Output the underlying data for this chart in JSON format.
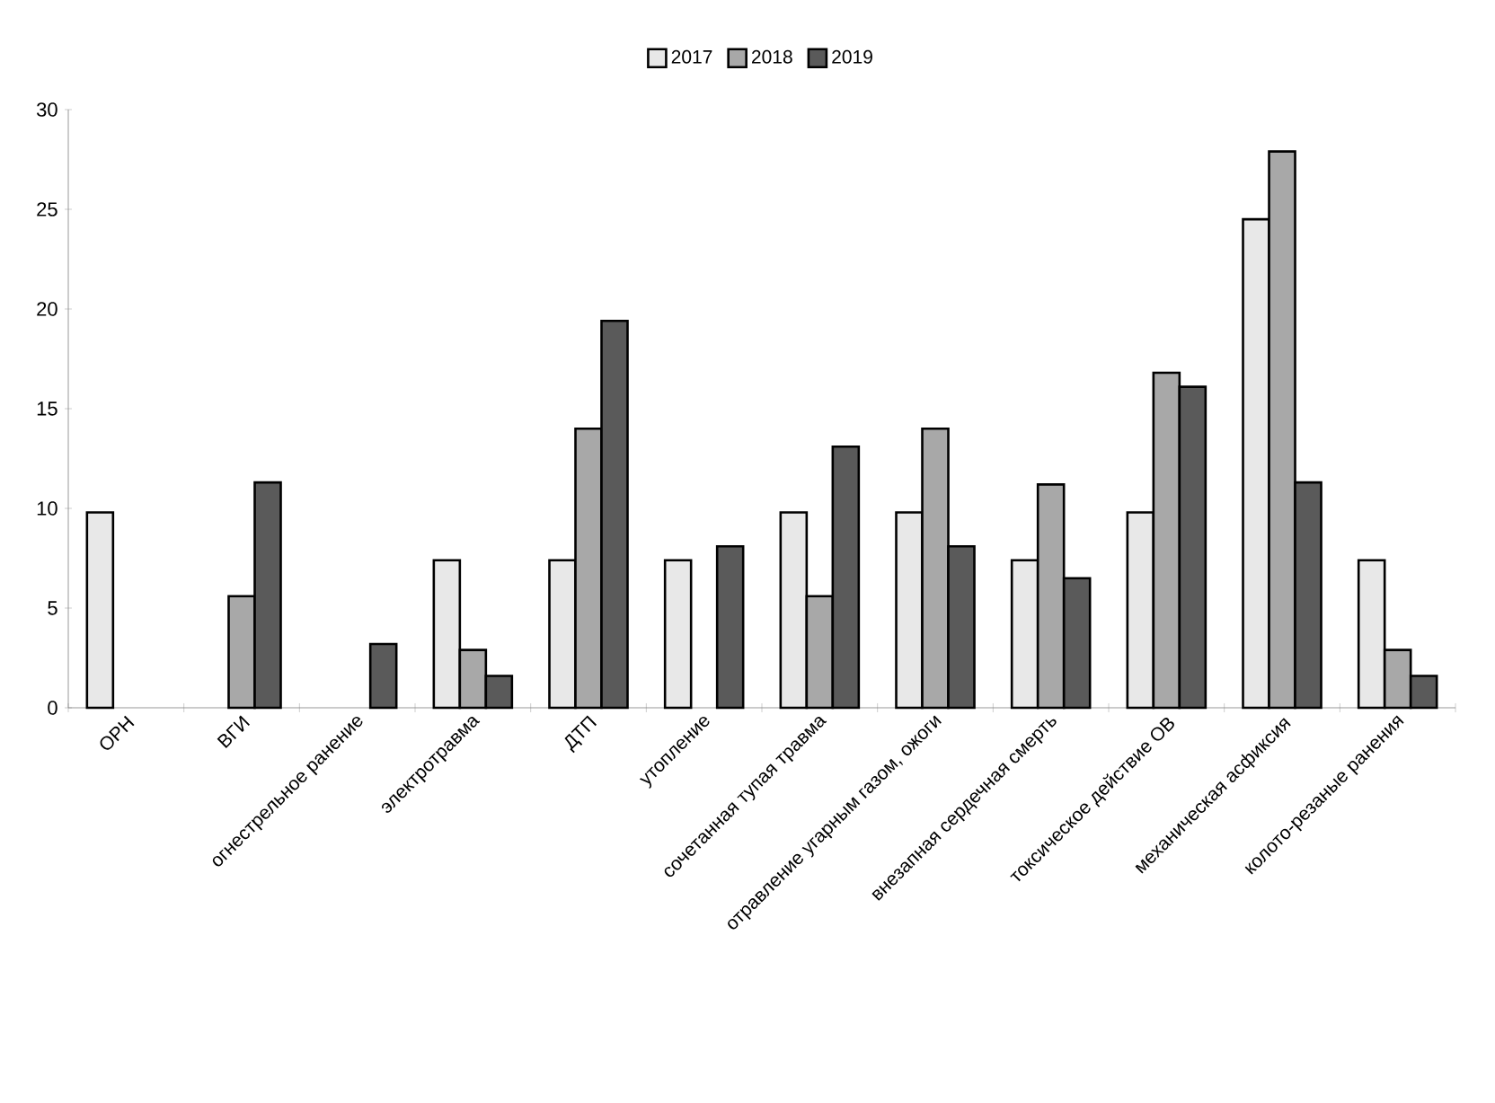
{
  "chart_data": {
    "type": "bar",
    "categories": [
      "ОРН",
      "ВГИ",
      "огнестрельное ранение",
      "электротравма",
      "ДТП",
      "утопление",
      "сочетанная тупая травма",
      "отравление угарным газом, ожоги",
      "внезапная сердечная смерть",
      "токсическое действие ОВ",
      "механическая асфиксия",
      "колото-резаные ранения"
    ],
    "series": [
      {
        "name": "2017",
        "color": "#e8e8e8",
        "values": [
          9.8,
          null,
          null,
          7.4,
          7.4,
          7.4,
          9.8,
          9.8,
          7.4,
          9.8,
          24.5,
          7.4
        ]
      },
      {
        "name": "2018",
        "color": "#a8a8a8",
        "values": [
          null,
          5.6,
          null,
          2.9,
          14.0,
          null,
          5.6,
          14.0,
          11.2,
          16.8,
          27.9,
          2.9
        ]
      },
      {
        "name": "2019",
        "color": "#5a5a5a",
        "values": [
          null,
          11.3,
          3.2,
          1.6,
          19.4,
          8.1,
          13.1,
          8.1,
          6.5,
          16.1,
          11.3,
          1.6
        ]
      }
    ],
    "ylim": [
      0,
      30
    ],
    "yticks": [
      0,
      5,
      10,
      15,
      20,
      25,
      30
    ],
    "grid": false,
    "legend": "top"
  }
}
